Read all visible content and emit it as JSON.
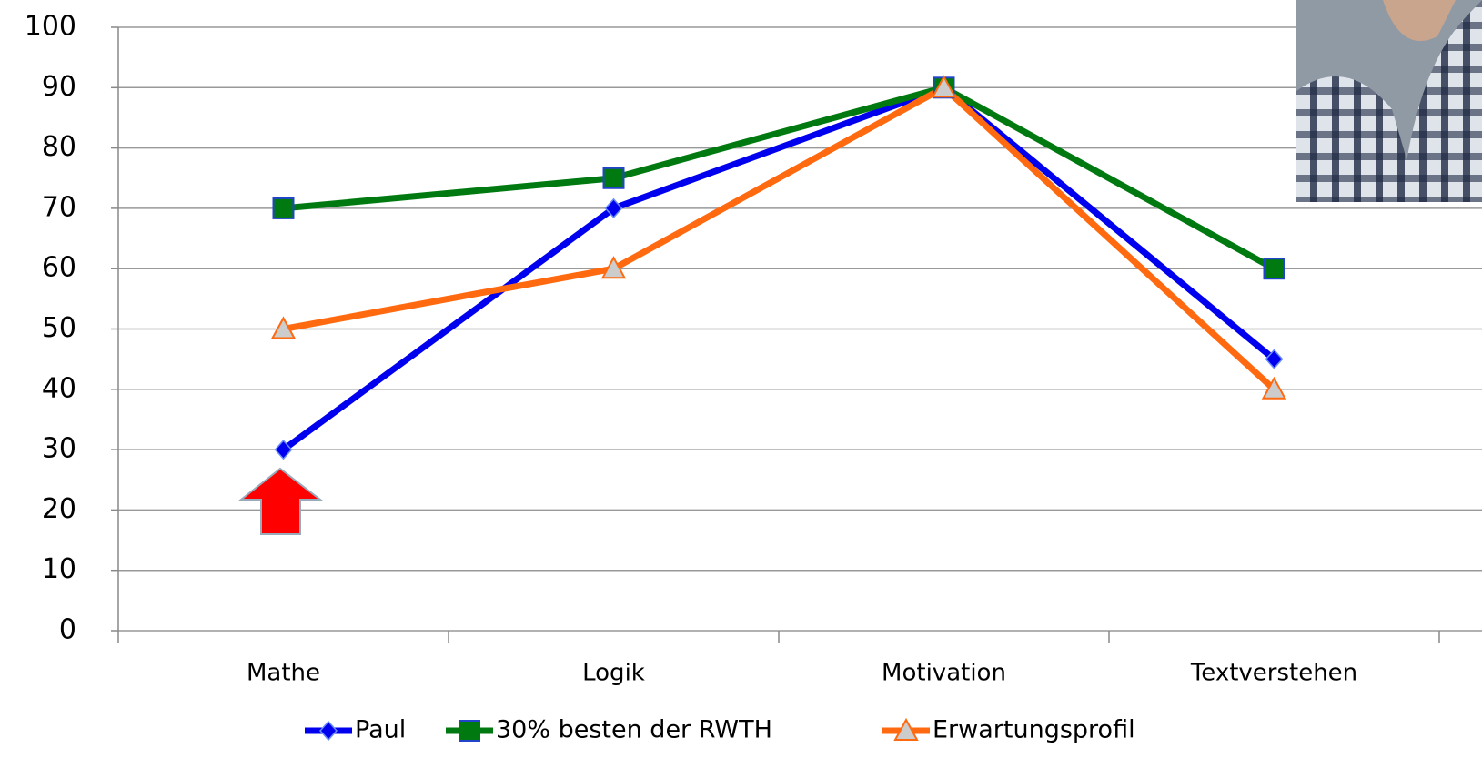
{
  "chart_data": {
    "type": "line",
    "categories": [
      "Mathe",
      "Logik",
      "Motivation",
      "Textverstehen"
    ],
    "series": [
      {
        "name": "Paul",
        "color": "#0000ee",
        "marker": "diamond",
        "values": [
          30,
          70,
          90,
          45
        ]
      },
      {
        "name": "30% besten der RWTH",
        "color": "#007a10",
        "marker": "square",
        "values": [
          70,
          75,
          90,
          60
        ]
      },
      {
        "name": "Erwartungsprofil",
        "color": "#ff6a10",
        "marker": "triangle",
        "values": [
          50,
          60,
          90,
          40
        ]
      }
    ],
    "ylim": [
      0,
      100
    ],
    "yticks": [
      0,
      10,
      20,
      30,
      40,
      50,
      60,
      70,
      80,
      90,
      100
    ],
    "grid": true,
    "legend": "bottom"
  }
}
